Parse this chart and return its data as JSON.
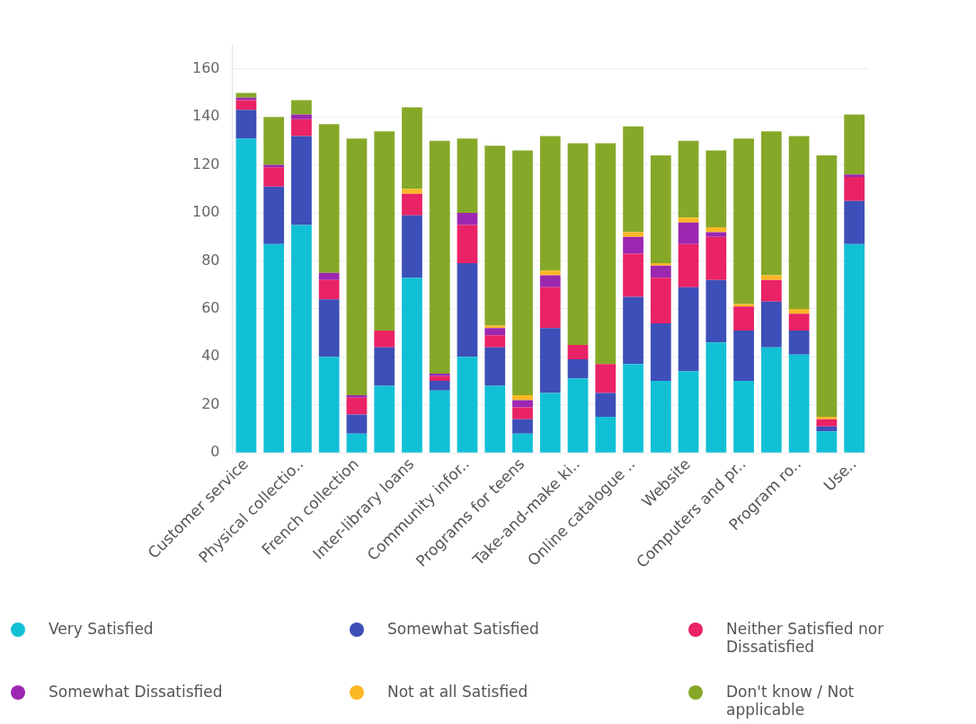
{
  "chart_data": {
    "type": "bar",
    "stacked": true,
    "categories": [
      "Customer service",
      null,
      "Physical collectio..",
      null,
      "French collection",
      null,
      "Inter-library loans",
      null,
      "Community infor..",
      null,
      "Programs for teens",
      null,
      "Take-and-make ki..",
      null,
      "Online catalogue ..",
      null,
      "Website",
      null,
      "Computers and pr..",
      null,
      "Program ro..",
      null,
      "Use.."
    ],
    "series": [
      {
        "name": "Very Satisfied",
        "color": "#12c0d6",
        "values": [
          131,
          87,
          95,
          40,
          8,
          28,
          73,
          26,
          40,
          28,
          8,
          25,
          31,
          15,
          37,
          30,
          34,
          46,
          30,
          44,
          41,
          9,
          87
        ]
      },
      {
        "name": "Somewhat Satisfied",
        "color": "#3d4fb8",
        "values": [
          12,
          24,
          37,
          24,
          8,
          16,
          26,
          4,
          39,
          16,
          6,
          27,
          8,
          10,
          28,
          24,
          35,
          26,
          21,
          19,
          10,
          2,
          18
        ]
      },
      {
        "name": "Neither Satisfied nor Dissatisfied",
        "color": "#ea2266",
        "values": [
          4,
          8,
          7,
          8,
          7,
          7,
          9,
          2,
          16,
          5,
          5,
          17,
          6,
          12,
          18,
          19,
          18,
          18,
          10,
          9,
          7,
          3,
          10
        ]
      },
      {
        "name": "Somewhat Dissatisfied",
        "color": "#9c27b0",
        "values": [
          1,
          1,
          2,
          3,
          1,
          0,
          0,
          1,
          5,
          3,
          3,
          5,
          0,
          0,
          7,
          5,
          9,
          2,
          0,
          0,
          0,
          0,
          1
        ]
      },
      {
        "name": "Not at all Satisfied",
        "color": "#fbb726",
        "values": [
          0,
          0,
          0,
          0,
          0,
          0,
          2,
          0,
          0,
          1,
          2,
          2,
          0,
          0,
          2,
          1,
          2,
          2,
          1,
          2,
          2,
          1,
          0
        ]
      },
      {
        "name": "Don't know / Not applicable",
        "color": "#86a828",
        "values": [
          2,
          20,
          6,
          62,
          107,
          83,
          34,
          97,
          31,
          75,
          102,
          56,
          84,
          92,
          44,
          45,
          32,
          32,
          69,
          60,
          72,
          109,
          25
        ]
      }
    ],
    "ylim": [
      0,
      170
    ],
    "yticks": [
      0,
      20,
      40,
      60,
      80,
      100,
      120,
      140,
      160
    ],
    "grid": "y",
    "legend": "bottom"
  }
}
